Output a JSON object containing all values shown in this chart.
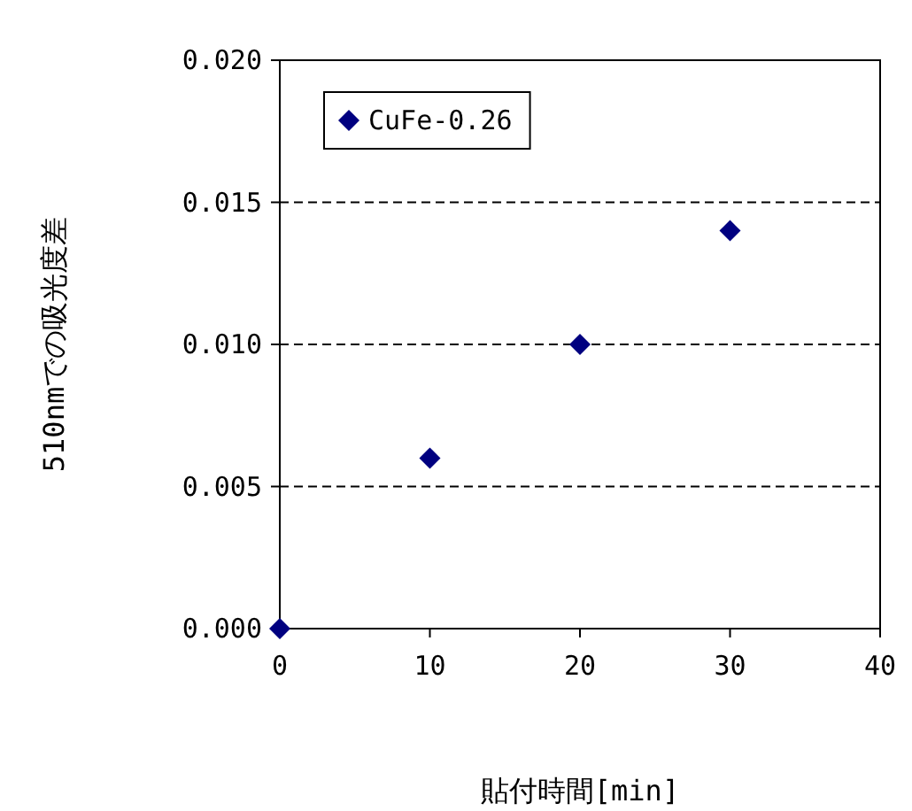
{
  "chart_data": {
    "type": "scatter",
    "xlabel": "貼付時間[min]",
    "ylabel": "510nmでの吸光度差",
    "x": [
      0,
      10,
      20,
      30
    ],
    "series": [
      {
        "name": "CuFe-0.26",
        "color": "#000080",
        "values": [
          0,
          0.006,
          0.01,
          0.014
        ]
      }
    ],
    "xlim": [
      0,
      40
    ],
    "ylim": [
      0,
      0.02
    ],
    "xticks": [
      0,
      10,
      20,
      30,
      40
    ],
    "yticks": [
      {
        "value": 0,
        "label": "0.000"
      },
      {
        "value": 0.005,
        "label": "0.005"
      },
      {
        "value": 0.01,
        "label": "0.010"
      },
      {
        "value": 0.015,
        "label": "0.015"
      },
      {
        "value": 0.02,
        "label": "0.020"
      }
    ],
    "grid": "y",
    "legend": "top left",
    "marker": "diamond"
  }
}
